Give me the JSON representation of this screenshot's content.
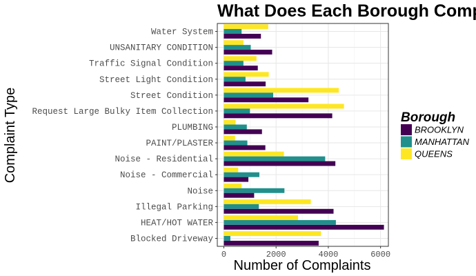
{
  "chart_data": {
    "type": "bar",
    "orientation": "horizontal",
    "title": "What Does Each Borough Complain About?",
    "xlabel": "Number of Complaints",
    "ylabel": "Complaint Type",
    "xlim": [
      -250,
      6300
    ],
    "xticks": [
      0,
      2000,
      4000,
      6000
    ],
    "grid": true,
    "legend_title": "Borough",
    "legend_position": "right",
    "categories": [
      "Water System",
      "UNSANITARY CONDITION",
      "Traffic Signal Condition",
      "Street Light Condition",
      "Street Condition",
      "Request Large Bulky Item Collection",
      "PLUMBING",
      "PAINT/PLASTER",
      "Noise - Residential",
      "Noise - Commercial",
      "Noise",
      "Illegal Parking",
      "HEAT/HOT WATER",
      "Blocked Driveway"
    ],
    "series": [
      {
        "name": "QUEENS",
        "color": "#fde725",
        "values": [
          1700,
          750,
          1250,
          1720,
          4400,
          4600,
          450,
          430,
          2300,
          550,
          680,
          3330,
          2840,
          3720
        ]
      },
      {
        "name": "MANHATTAN",
        "color": "#21908c",
        "values": [
          680,
          1030,
          750,
          830,
          1890,
          1000,
          880,
          900,
          3880,
          1360,
          2320,
          1340,
          4290,
          250
        ]
      },
      {
        "name": "BROOKLYN",
        "color": "#440154",
        "values": [
          1420,
          1850,
          1300,
          1600,
          3240,
          4150,
          1460,
          1590,
          4270,
          940,
          1160,
          4200,
          6130,
          3630
        ]
      }
    ]
  }
}
